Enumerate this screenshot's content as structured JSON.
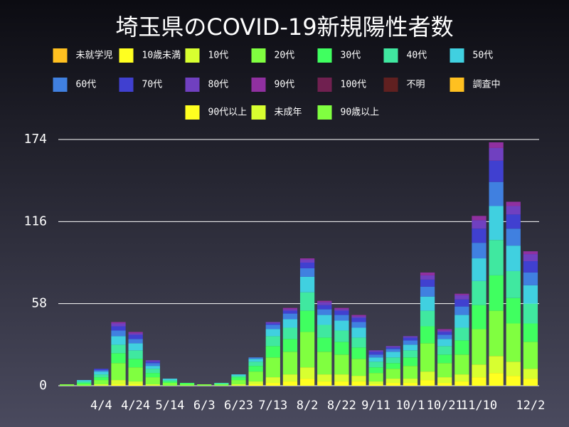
{
  "chart_data": {
    "type": "stacked_bar",
    "title": "埼玉県のCOVID-19新規陽性者数",
    "categories": [
      null,
      null,
      "4/4",
      null,
      "4/24",
      null,
      "5/14",
      null,
      "6/3",
      null,
      "6/23",
      null,
      "7/13",
      null,
      "8/2",
      null,
      "8/22",
      null,
      "9/11",
      null,
      "10/1",
      null,
      "10/21",
      null,
      "11/10",
      null,
      null,
      "12/2"
    ],
    "ylim": [
      0,
      174
    ],
    "yticks": [
      0,
      58,
      116,
      174
    ],
    "grid": true,
    "series": [
      {
        "name": "未就学児",
        "color": "#ffc020",
        "values": [
          0,
          0,
          0,
          0,
          0,
          0,
          0,
          0,
          0,
          0,
          0,
          0,
          0,
          0,
          0,
          0,
          0,
          0,
          0,
          0,
          0,
          0,
          0,
          0,
          0,
          0,
          0,
          0
        ]
      },
      {
        "name": "10歳未満",
        "color": "#ffff20",
        "values": [
          0,
          0,
          0,
          1,
          1,
          0,
          0,
          0,
          0,
          0,
          0,
          1,
          2,
          3,
          5,
          3,
          3,
          3,
          1,
          2,
          2,
          4,
          2,
          3,
          6,
          9,
          7,
          5
        ]
      },
      {
        "name": "10代",
        "color": "#d8ff30",
        "values": [
          0,
          0,
          1,
          3,
          2,
          1,
          0,
          0,
          0,
          0,
          1,
          2,
          4,
          5,
          8,
          5,
          5,
          4,
          2,
          3,
          3,
          6,
          4,
          5,
          9,
          12,
          10,
          7
        ]
      },
      {
        "name": "20代",
        "color": "#80ff40",
        "values": [
          1,
          1,
          3,
          12,
          10,
          5,
          2,
          1,
          1,
          1,
          3,
          7,
          14,
          16,
          25,
          16,
          14,
          12,
          6,
          7,
          9,
          20,
          10,
          14,
          25,
          32,
          27,
          19
        ]
      },
      {
        "name": "30代",
        "color": "#40ff60",
        "values": [
          0,
          1,
          2,
          7,
          6,
          3,
          1,
          1,
          0,
          0,
          2,
          4,
          8,
          9,
          15,
          10,
          9,
          8,
          4,
          4,
          6,
          12,
          6,
          10,
          17,
          25,
          18,
          13
        ]
      },
      {
        "name": "40代",
        "color": "#40e8a0",
        "values": [
          0,
          1,
          2,
          6,
          6,
          3,
          1,
          0,
          0,
          1,
          1,
          3,
          7,
          8,
          13,
          9,
          8,
          7,
          4,
          4,
          5,
          11,
          6,
          9,
          17,
          25,
          19,
          14
        ]
      },
      {
        "name": "50代",
        "color": "#40d0e0",
        "values": [
          0,
          1,
          2,
          6,
          5,
          2,
          1,
          0,
          0,
          0,
          1,
          2,
          5,
          6,
          11,
          7,
          7,
          7,
          3,
          4,
          4,
          10,
          5,
          9,
          16,
          24,
          18,
          13
        ]
      },
      {
        "name": "60代",
        "color": "#4080e0",
        "values": [
          0,
          0,
          1,
          4,
          3,
          2,
          0,
          0,
          0,
          0,
          0,
          1,
          3,
          4,
          6,
          4,
          4,
          4,
          2,
          2,
          3,
          7,
          3,
          6,
          11,
          17,
          12,
          9
        ]
      },
      {
        "name": "70代",
        "color": "#4040d0",
        "values": [
          0,
          0,
          1,
          3,
          3,
          1,
          0,
          0,
          0,
          0,
          0,
          0,
          1,
          2,
          4,
          3,
          3,
          3,
          2,
          1,
          2,
          5,
          2,
          5,
          10,
          15,
          10,
          8
        ]
      },
      {
        "name": "80代",
        "color": "#7040c0",
        "values": [
          0,
          0,
          0,
          2,
          1,
          1,
          0,
          0,
          0,
          0,
          0,
          0,
          1,
          1,
          2,
          2,
          1,
          1,
          1,
          1,
          1,
          3,
          1,
          3,
          6,
          9,
          6,
          5
        ]
      },
      {
        "name": "90代",
        "color": "#9030a0",
        "values": [
          0,
          0,
          0,
          1,
          1,
          0,
          0,
          0,
          0,
          0,
          0,
          0,
          0,
          1,
          1,
          1,
          1,
          1,
          0,
          0,
          0,
          2,
          1,
          1,
          3,
          4,
          3,
          2
        ]
      },
      {
        "name": "100代",
        "color": "#702050",
        "values": [
          0,
          0,
          0,
          0,
          0,
          0,
          0,
          0,
          0,
          0,
          0,
          0,
          0,
          0,
          0,
          0,
          0,
          0,
          0,
          0,
          0,
          0,
          0,
          0,
          0,
          0,
          0,
          0
        ]
      },
      {
        "name": "不明",
        "color": "#602020",
        "values": [
          0,
          0,
          0,
          0,
          0,
          0,
          0,
          0,
          0,
          0,
          0,
          0,
          0,
          0,
          0,
          0,
          0,
          0,
          0,
          0,
          0,
          0,
          0,
          0,
          0,
          0,
          0,
          0
        ]
      },
      {
        "name": "調査中",
        "color": "#ffc020",
        "values": [
          0,
          0,
          0,
          0,
          0,
          0,
          0,
          0,
          0,
          0,
          0,
          0,
          0,
          0,
          0,
          0,
          0,
          0,
          0,
          0,
          0,
          0,
          0,
          0,
          0,
          0,
          0,
          0
        ]
      },
      {
        "name": "90代以上",
        "color": "#ffff20",
        "values": [
          0,
          0,
          0,
          0,
          0,
          0,
          0,
          0,
          0,
          0,
          0,
          0,
          0,
          0,
          0,
          0,
          0,
          0,
          0,
          0,
          0,
          0,
          0,
          0,
          0,
          0,
          0,
          0
        ]
      },
      {
        "name": "未成年",
        "color": "#d8ff30",
        "values": [
          0,
          0,
          0,
          0,
          0,
          0,
          0,
          0,
          0,
          0,
          0,
          0,
          0,
          0,
          0,
          0,
          0,
          0,
          0,
          0,
          0,
          0,
          0,
          0,
          0,
          0,
          0,
          0
        ]
      },
      {
        "name": "90歳以上",
        "color": "#80ff40",
        "values": [
          0,
          0,
          0,
          0,
          0,
          0,
          0,
          0,
          0,
          0,
          0,
          0,
          0,
          0,
          0,
          0,
          0,
          0,
          0,
          0,
          0,
          0,
          0,
          0,
          0,
          0,
          0,
          0
        ]
      }
    ]
  }
}
